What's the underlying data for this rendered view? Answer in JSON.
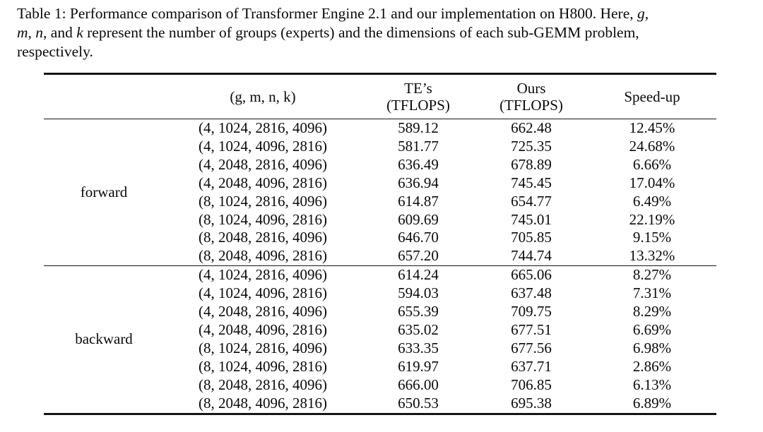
{
  "page": {
    "background": "#ffffff",
    "text_color": "#0a0a0a",
    "rule_color": "#151515"
  },
  "caption": {
    "lines": [
      [
        {
          "text": "Table 1: Performance comparison of Transformer Engine 2.1 and our implementation on H800. Here, "
        },
        {
          "text": "g",
          "italic": true
        },
        {
          "text": ","
        }
      ],
      [
        {
          "text": "m",
          "italic": true
        },
        {
          "text": ", "
        },
        {
          "text": "n",
          "italic": true
        },
        {
          "text": ", and "
        },
        {
          "text": "k",
          "italic": true
        },
        {
          "text": " represent the number of groups (experts) and the dimensions of each sub-GEMM problem,"
        }
      ],
      [
        {
          "text": "respectively."
        }
      ]
    ]
  },
  "table": {
    "header": {
      "tuple": "(g, m, n, k)",
      "te": [
        "TE’s",
        "(TFLOPS)"
      ],
      "ours": [
        "Ours",
        "(TFLOPS)"
      ],
      "speedup": "Speed-up"
    },
    "sections": [
      {
        "label": "forward",
        "rows": [
          {
            "tuple": "(4, 1024, 2816, 4096)",
            "te": "589.12",
            "ours": "662.48",
            "speedup": "12.45%"
          },
          {
            "tuple": "(4, 1024, 4096, 2816)",
            "te": "581.77",
            "ours": "725.35",
            "speedup": "24.68%"
          },
          {
            "tuple": "(4, 2048, 2816, 4096)",
            "te": "636.49",
            "ours": "678.89",
            "speedup": "6.66%"
          },
          {
            "tuple": "(4, 2048, 4096, 2816)",
            "te": "636.94",
            "ours": "745.45",
            "speedup": "17.04%"
          },
          {
            "tuple": "(8, 1024, 2816, 4096)",
            "te": "614.87",
            "ours": "654.77",
            "speedup": "6.49%"
          },
          {
            "tuple": "(8, 1024, 4096, 2816)",
            "te": "609.69",
            "ours": "745.01",
            "speedup": "22.19%"
          },
          {
            "tuple": "(8, 2048, 2816, 4096)",
            "te": "646.70",
            "ours": "705.85",
            "speedup": "9.15%"
          },
          {
            "tuple": "(8, 2048, 4096, 2816)",
            "te": "657.20",
            "ours": "744.74",
            "speedup": "13.32%"
          }
        ]
      },
      {
        "label": "backward",
        "rows": [
          {
            "tuple": "(4, 1024, 2816, 4096)",
            "te": "614.24",
            "ours": "665.06",
            "speedup": "8.27%"
          },
          {
            "tuple": "(4, 1024, 4096, 2816)",
            "te": "594.03",
            "ours": "637.48",
            "speedup": "7.31%"
          },
          {
            "tuple": "(4, 2048, 2816, 4096)",
            "te": "655.39",
            "ours": "709.75",
            "speedup": "8.29%"
          },
          {
            "tuple": "(4, 2048, 4096, 2816)",
            "te": "635.02",
            "ours": "677.51",
            "speedup": "6.69%"
          },
          {
            "tuple": "(8, 1024, 2816, 4096)",
            "te": "633.35",
            "ours": "677.56",
            "speedup": "6.98%"
          },
          {
            "tuple": "(8, 1024, 4096, 2816)",
            "te": "619.97",
            "ours": "637.71",
            "speedup": "2.86%"
          },
          {
            "tuple": "(8, 2048, 2816, 4096)",
            "te": "666.00",
            "ours": "706.85",
            "speedup": "6.13%"
          },
          {
            "tuple": "(8, 2048, 4096, 2816)",
            "te": "650.53",
            "ours": "695.38",
            "speedup": "6.89%"
          }
        ]
      }
    ]
  }
}
